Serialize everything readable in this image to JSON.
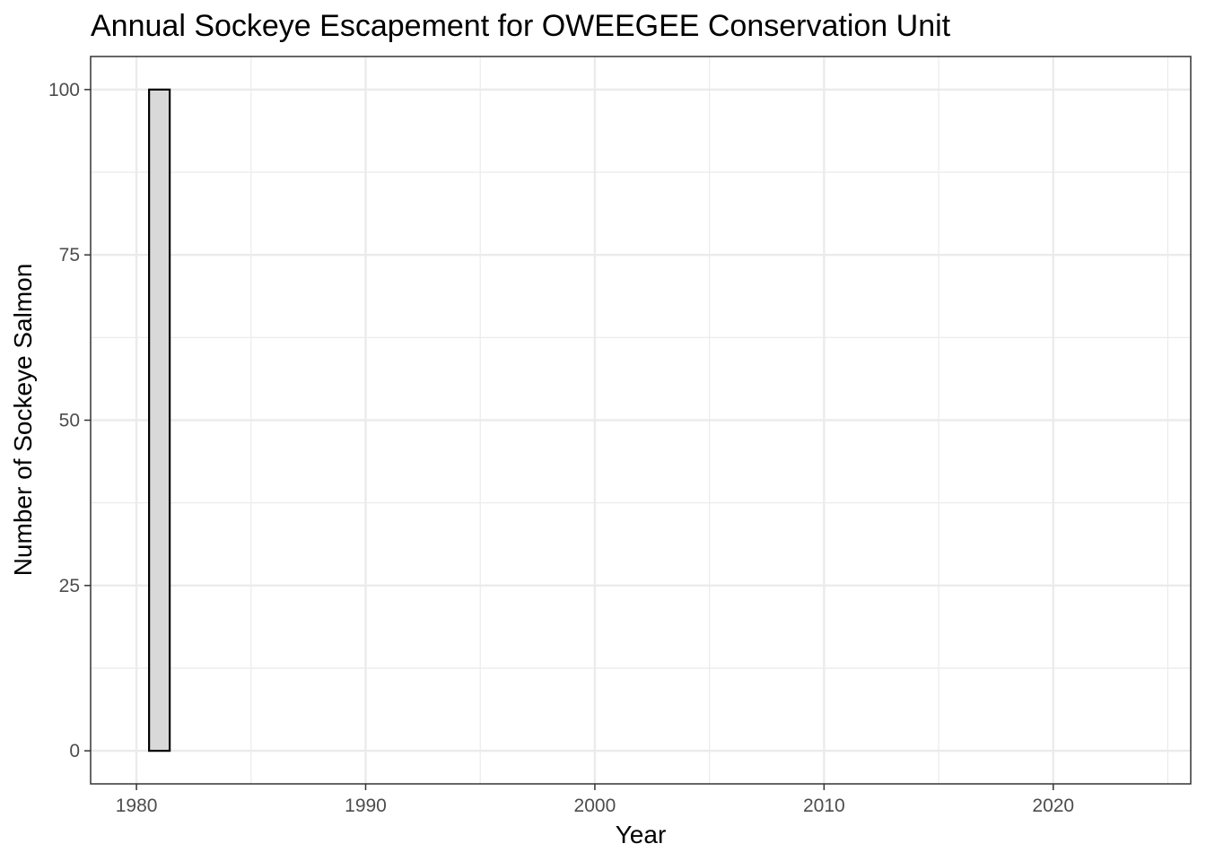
{
  "chart_data": {
    "type": "bar",
    "title": "Annual Sockeye Escapement for OWEEGEE Conservation Unit",
    "xlabel": "Year",
    "ylabel": "Number of Sockeye Salmon",
    "x": [
      1981
    ],
    "values": [
      100
    ],
    "xlim": [
      1978,
      2026
    ],
    "ylim": [
      -5,
      105
    ],
    "x_ticks": [
      1980,
      1990,
      2000,
      2010,
      2020
    ],
    "x_tick_labels": [
      "1980",
      "1990",
      "2000",
      "2010",
      "2020"
    ],
    "x_minor_ticks": [
      1985,
      1995,
      2005,
      2015,
      2025
    ],
    "y_ticks": [
      0,
      25,
      50,
      75,
      100
    ],
    "y_tick_labels": [
      "0",
      "25",
      "50",
      "75",
      "100"
    ],
    "y_minor_ticks": [
      12.5,
      37.5,
      62.5,
      87.5
    ],
    "bar_width_years": 0.9,
    "grid": true,
    "legend": "none",
    "colors": {
      "bar_fill": "#d9d9d9",
      "bar_stroke": "#000000",
      "grid_major": "#ebebeb",
      "grid_minor": "#ebebeb",
      "panel_border": "#333333",
      "tick_text": "#4d4d4d"
    }
  }
}
